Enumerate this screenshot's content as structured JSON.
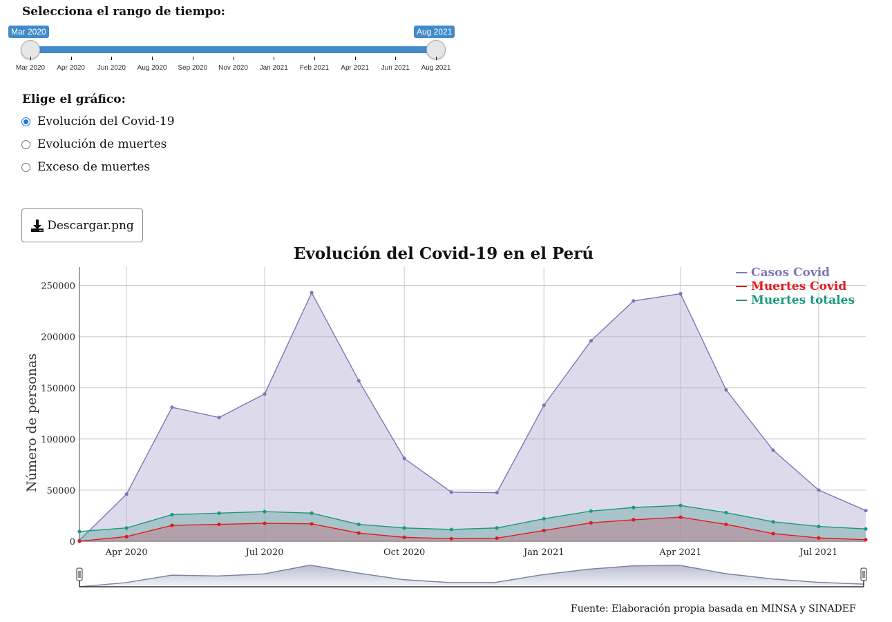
{
  "range_selector": {
    "heading": "Selecciona el rango de tiempo:",
    "from_label": "Mar 2020",
    "to_label": "Aug 2021",
    "from_fraction": 0,
    "to_fraction": 1,
    "ticks": [
      "Mar 2020",
      "Apr 2020",
      "Jun 2020",
      "Aug 2020",
      "Sep 2020",
      "Nov 2020",
      "Jan 2021",
      "Feb 2021",
      "Apr 2021",
      "Jun 2021",
      "Aug 2021"
    ]
  },
  "chart_selector": {
    "heading": "Elige el gráfico:",
    "options": [
      {
        "label": "Evolución del Covid-19",
        "selected": true
      },
      {
        "label": "Evolución de muertes",
        "selected": false
      },
      {
        "label": "Exceso de muertes",
        "selected": false
      }
    ]
  },
  "download_button": {
    "label": "Descargar.png",
    "icon": "download-icon"
  },
  "footer": {
    "source": "Fuente: Elaboración propia basada en MINSA y SINADEF"
  },
  "chart_data": {
    "type": "area",
    "title": "Evolución del Covid-19 en el Perú",
    "ylabel": "Número de personas",
    "xlabel": "",
    "ylim": [
      0,
      268000
    ],
    "yticks": [
      0,
      50000,
      100000,
      150000,
      200000,
      250000
    ],
    "xlim": [
      "2020-03-01",
      "2021-08-01"
    ],
    "xticks": [
      {
        "date": "2020-04-01",
        "label": "Apr 2020"
      },
      {
        "date": "2020-07-01",
        "label": "Jul 2020"
      },
      {
        "date": "2020-10-01",
        "label": "Oct 2020"
      },
      {
        "date": "2021-01-01",
        "label": "Jan 2021"
      },
      {
        "date": "2021-04-01",
        "label": "Apr 2021"
      },
      {
        "date": "2021-07-01",
        "label": "Jul 2021"
      }
    ],
    "grid": true,
    "legend_position": "top-right",
    "x": [
      "2020-03-01",
      "2020-04-01",
      "2020-05-01",
      "2020-06-01",
      "2020-07-01",
      "2020-08-01",
      "2020-09-01",
      "2020-10-01",
      "2020-11-01",
      "2020-12-01",
      "2021-01-01",
      "2021-02-01",
      "2021-03-01",
      "2021-04-01",
      "2021-05-01",
      "2021-06-01",
      "2021-07-01",
      "2021-08-01"
    ],
    "series": [
      {
        "name": "Casos Covid",
        "color": "#7b77b8",
        "fill": "rgba(180,175,210,0.45)",
        "values": [
          950,
          46000,
          131000,
          121000,
          144000,
          243000,
          157000,
          81000,
          48000,
          47500,
          133000,
          196000,
          235000,
          242000,
          148000,
          89000,
          50000,
          30000
        ]
      },
      {
        "name": "Muertes totales",
        "color": "#1a9a7a",
        "fill": "rgba(90,160,150,0.40)",
        "values": [
          9500,
          13000,
          26000,
          27500,
          29000,
          27500,
          16500,
          13000,
          11500,
          13000,
          22000,
          29500,
          33000,
          35000,
          28000,
          19000,
          14500,
          12000
        ]
      },
      {
        "name": "Muertes Covid",
        "color": "#e31a1c",
        "fill": "rgba(190,120,140,0.45)",
        "values": [
          30,
          4500,
          15500,
          16500,
          17500,
          17000,
          8000,
          3800,
          2500,
          3000,
          10500,
          18000,
          21000,
          23500,
          16500,
          7500,
          3200,
          1500
        ]
      }
    ]
  },
  "navigator": {
    "values": [
      950,
      46000,
      131000,
      121000,
      144000,
      243000,
      157000,
      81000,
      48000,
      47500,
      133000,
      196000,
      235000,
      242000,
      148000,
      89000,
      50000,
      30000
    ]
  }
}
